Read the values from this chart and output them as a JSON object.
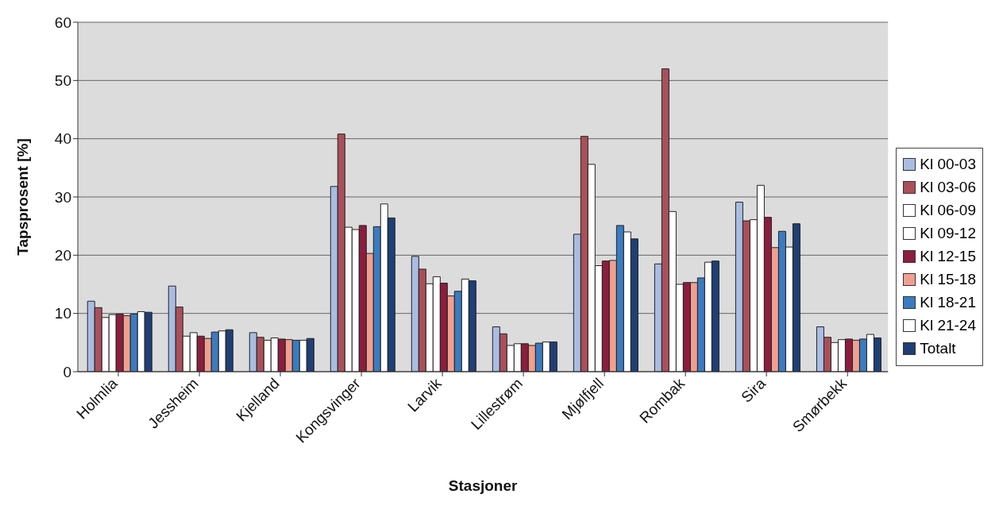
{
  "chart_data": {
    "type": "bar",
    "xlabel": "Stasjoner",
    "ylabel": "Tapsprosent [%]",
    "categories": [
      "Holmlia",
      "Jessheim",
      "Kjelland",
      "Kongsvinger",
      "Larvik",
      "Lillestrøm",
      "Mjølfjell",
      "Rombak",
      "Sira",
      "Smørbekk"
    ],
    "series": [
      {
        "name": "Kl 00-03",
        "color": "#a9bde3",
        "values": [
          12.1,
          14.7,
          6.7,
          31.8,
          19.8,
          7.7,
          23.6,
          18.5,
          29.1,
          7.7
        ]
      },
      {
        "name": "Kl 03-06",
        "color": "#a9505a",
        "values": [
          11.0,
          11.1,
          5.9,
          40.8,
          17.6,
          6.5,
          40.4,
          52.0,
          25.9,
          5.9
        ]
      },
      {
        "name": "Kl 06-09",
        "color": "#ffffff",
        "values": [
          9.3,
          6.1,
          5.4,
          24.8,
          15.1,
          4.5,
          35.6,
          27.5,
          26.1,
          5.0
        ]
      },
      {
        "name": "Kl 09-12",
        "color": "#ffffff",
        "values": [
          9.8,
          6.7,
          5.8,
          24.4,
          16.3,
          4.8,
          18.2,
          15.0,
          32.0,
          5.5
        ]
      },
      {
        "name": "Kl 12-15",
        "color": "#8b1e3f",
        "values": [
          9.9,
          6.1,
          5.6,
          25.1,
          15.2,
          4.8,
          19.0,
          15.3,
          26.5,
          5.6
        ]
      },
      {
        "name": "Kl 15-18",
        "color": "#f0a090",
        "values": [
          9.6,
          5.7,
          5.5,
          20.3,
          13.0,
          4.5,
          19.1,
          15.3,
          21.3,
          5.4
        ]
      },
      {
        "name": "Kl 18-21",
        "color": "#3a7cc0",
        "values": [
          9.9,
          6.8,
          5.4,
          24.9,
          13.8,
          4.9,
          25.1,
          16.1,
          24.1,
          5.6
        ]
      },
      {
        "name": "Kl 21-24",
        "color": "#ffffff",
        "values": [
          10.3,
          7.0,
          5.4,
          28.8,
          15.9,
          5.1,
          24.0,
          18.8,
          21.4,
          6.4
        ]
      },
      {
        "name": "Totalt",
        "color": "#1f3f75",
        "values": [
          10.2,
          7.2,
          5.7,
          26.4,
          15.6,
          5.1,
          22.8,
          19.0,
          25.4,
          5.8
        ]
      }
    ],
    "ylim": [
      0,
      60
    ],
    "yticks": [
      0,
      10,
      20,
      30,
      40,
      50,
      60
    ],
    "grid": "y",
    "legend": "right"
  }
}
